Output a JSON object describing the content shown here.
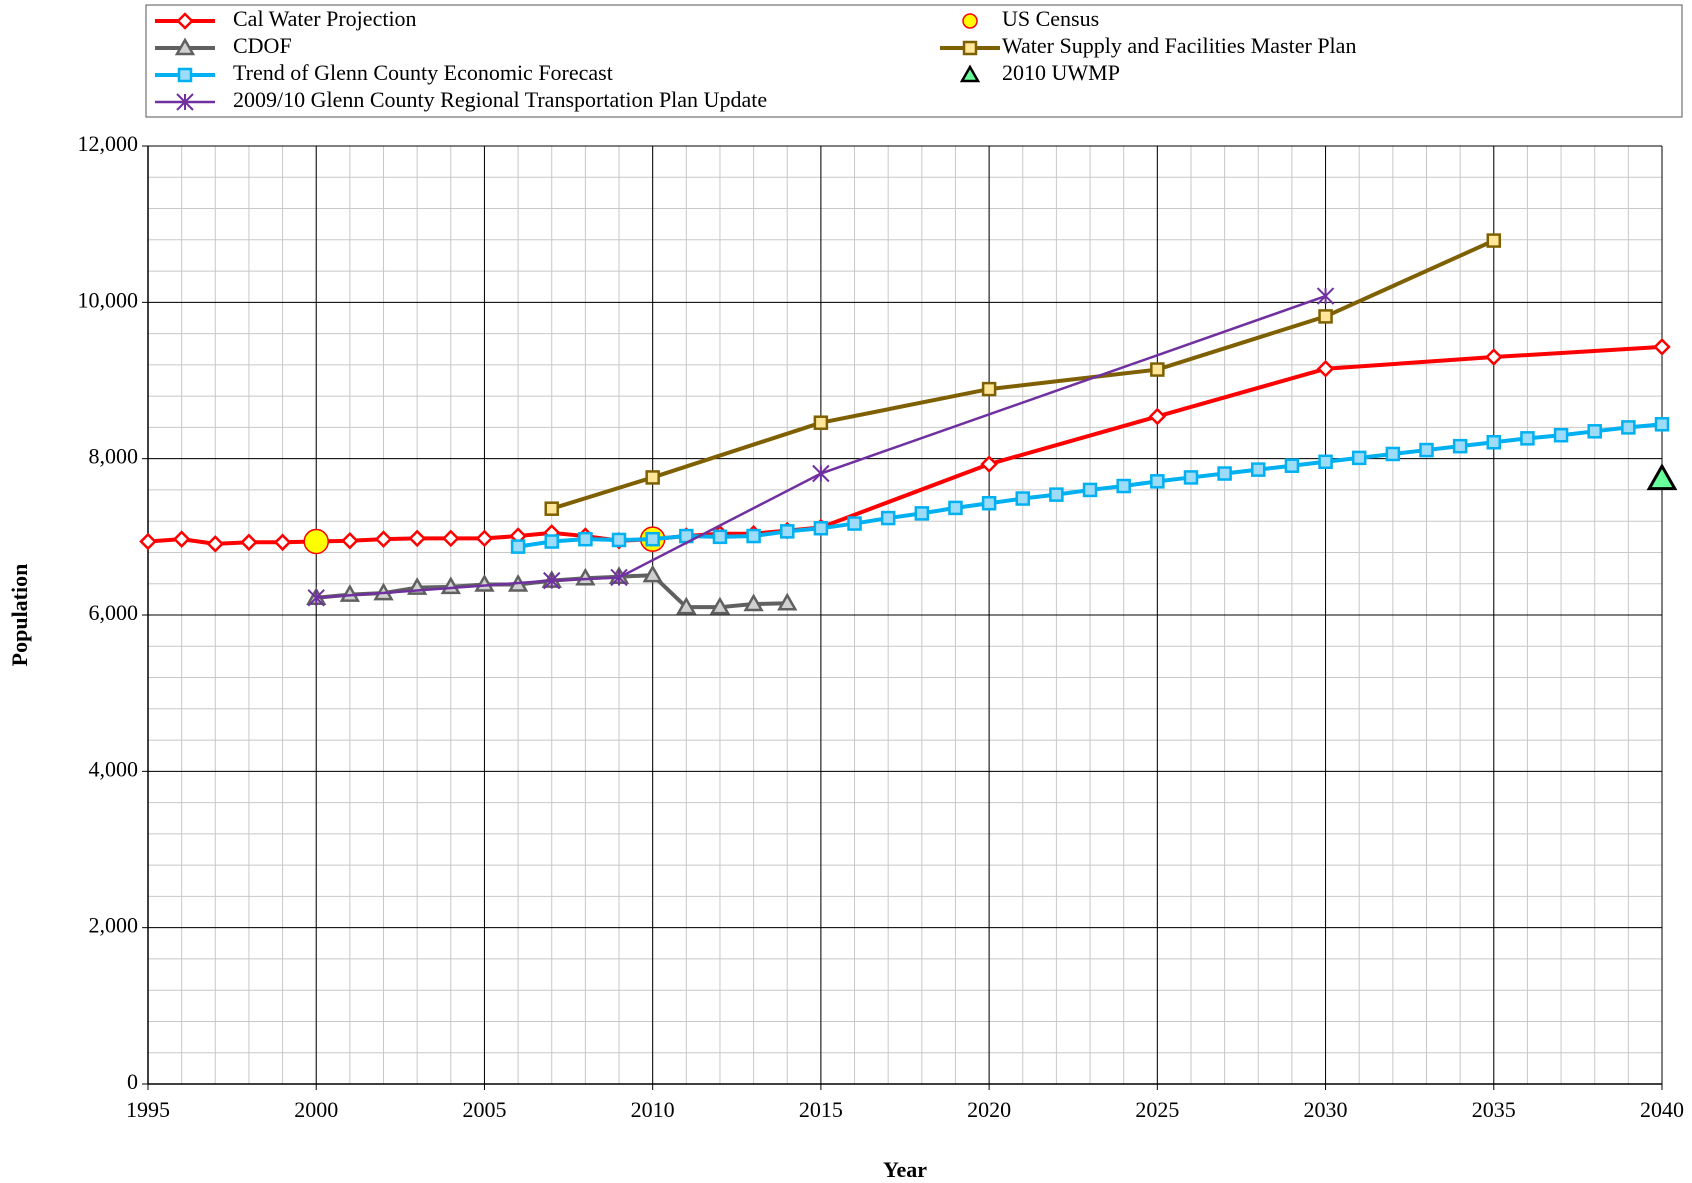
{
  "chart_data": {
    "type": "line",
    "xlabel": "Year",
    "ylabel": "Population",
    "xlim": [
      1995,
      2040
    ],
    "xticks": [
      1995,
      2000,
      2005,
      2010,
      2015,
      2020,
      2025,
      2030,
      2035,
      2040
    ],
    "ylim": [
      0,
      12000
    ],
    "yticks": [
      0,
      {
        "value": 2000,
        "label": "2,000"
      },
      {
        "value": 4000,
        "label": "4,000"
      },
      {
        "value": 6000,
        "label": "6,000"
      },
      {
        "value": 8000,
        "label": "8,000"
      },
      {
        "value": 10000,
        "label": "10,000"
      },
      {
        "value": 12000,
        "label": "12,000"
      }
    ],
    "grid": true,
    "series": [
      {
        "name": "Cal Water Projection",
        "color": "#ff0000",
        "fill": "#ffffff",
        "marker": "diamond",
        "line": true,
        "x": [
          1995,
          1996,
          1997,
          1998,
          1999,
          2000,
          2001,
          2002,
          2003,
          2004,
          2005,
          2006,
          2007,
          2008,
          2009,
          2010,
          2011,
          2012,
          2013,
          2014,
          2015,
          2020,
          2025,
          2030,
          2035,
          2040
        ],
        "values": [
          6940,
          6970,
          6910,
          6930,
          6930,
          6940,
          6950,
          6970,
          6980,
          6980,
          6980,
          7010,
          7050,
          7010,
          6950,
          6970,
          7010,
          7040,
          7040,
          7080,
          7120,
          7930,
          8540,
          9150,
          9300,
          9430
        ]
      },
      {
        "name": "US Census",
        "color": "#ff0000",
        "fill": "#ffff00",
        "marker": "circle",
        "line": false,
        "x": [
          2000,
          2010
        ],
        "values": [
          6940,
          6970
        ]
      },
      {
        "name": "CDOF",
        "color": "#606060",
        "fill": "#d0d0d0",
        "marker": "triangle",
        "line": true,
        "x": [
          2000,
          2001,
          2002,
          2003,
          2004,
          2005,
          2006,
          2007,
          2008,
          2009,
          2010,
          2011,
          2012,
          2013,
          2014
        ],
        "values": [
          6220,
          6260,
          6280,
          6350,
          6360,
          6390,
          6390,
          6440,
          6470,
          6490,
          6510,
          6100,
          6100,
          6140,
          6150
        ]
      },
      {
        "name": "Water Supply and Facilities Master Plan",
        "color": "#7f6000",
        "fill": "#ffe699",
        "marker": "square",
        "line": true,
        "x": [
          2007,
          2010,
          2015,
          2020,
          2025,
          2030,
          2035
        ],
        "values": [
          7360,
          7760,
          8460,
          8890,
          9140,
          9820,
          10790
        ]
      },
      {
        "name": "Trend of Glenn County Economic Forecast",
        "color": "#00b0f0",
        "fill": "#9ddcf8",
        "marker": "square",
        "line": true,
        "x": [
          2006,
          2007,
          2008,
          2009,
          2010,
          2011,
          2012,
          2013,
          2014,
          2015,
          2016,
          2017,
          2018,
          2019,
          2020,
          2021,
          2022,
          2023,
          2024,
          2025,
          2026,
          2027,
          2028,
          2029,
          2030,
          2031,
          2032,
          2033,
          2034,
          2035,
          2036,
          2037,
          2038,
          2039,
          2040
        ],
        "values": [
          6875,
          6940,
          6970,
          6960,
          6970,
          7010,
          7000,
          7010,
          7070,
          7110,
          7170,
          7240,
          7300,
          7370,
          7430,
          7490,
          7540,
          7600,
          7650,
          7710,
          7760,
          7810,
          7860,
          7910,
          7960,
          8010,
          8060,
          8110,
          8160,
          8210,
          8260,
          8300,
          8350,
          8400,
          8440
        ]
      },
      {
        "name": "2010 UWMP",
        "color": "#000000",
        "fill": "#66ff99",
        "marker": "triangle",
        "line": false,
        "x": [
          2040
        ],
        "values": [
          7740
        ]
      },
      {
        "name": "2009/10 Glenn County Regional Transportation Plan Update",
        "color": "#7030a0",
        "fill": "#7030a0",
        "marker": "star",
        "line": true,
        "x": [
          2000,
          2007,
          2009,
          2015,
          2030
        ],
        "values": [
          6220,
          6440,
          6480,
          7810,
          10080
        ]
      }
    ]
  }
}
